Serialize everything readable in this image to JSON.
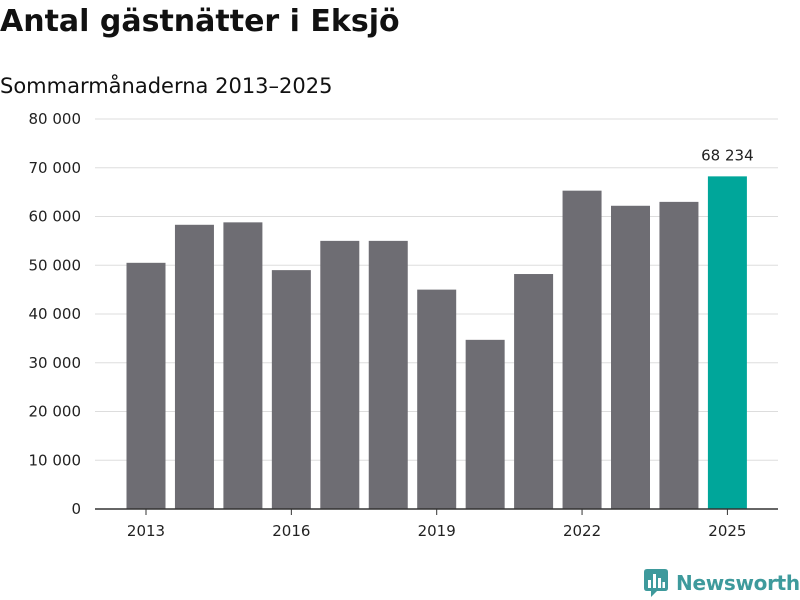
{
  "header": {
    "title": "Antal gästnätter i Eksjö",
    "subtitle": "Sommarmånaderna 2013–2025"
  },
  "branding": {
    "name": "Newsworthy",
    "icon": "bar-chart-icon",
    "color": "#3e9a9c"
  },
  "chart_data": {
    "type": "bar",
    "title": "Antal gästnätter i Eksjö",
    "subtitle": "Sommarmånaderna 2013–2025",
    "xlabel": "",
    "ylabel": "",
    "categories": [
      "2013",
      "2014",
      "2015",
      "2016",
      "2017",
      "2018",
      "2019",
      "2020",
      "2021",
      "2022",
      "2023",
      "2024",
      "2025"
    ],
    "values": [
      50500,
      58300,
      58800,
      49000,
      55000,
      55000,
      45000,
      34700,
      48200,
      65300,
      62200,
      63000,
      68234
    ],
    "ylim": [
      0,
      80000
    ],
    "yticks": [
      0,
      10000,
      20000,
      30000,
      40000,
      50000,
      60000,
      70000,
      80000
    ],
    "ytick_labels": [
      "0",
      "10 000",
      "20 000",
      "30 000",
      "40 000",
      "50 000",
      "60 000",
      "70 000",
      "80 000"
    ],
    "xtick_labels": [
      "2013",
      "2016",
      "2019",
      "2022",
      "2025"
    ],
    "data_labels": [
      {
        "category": "2025",
        "text": "68 234"
      }
    ],
    "grid": true,
    "colors": {
      "bar": "#6e6d73",
      "highlight": "#00a69a",
      "grid": "#dddddd",
      "axis": "#333333"
    },
    "highlight_category": "2025"
  }
}
